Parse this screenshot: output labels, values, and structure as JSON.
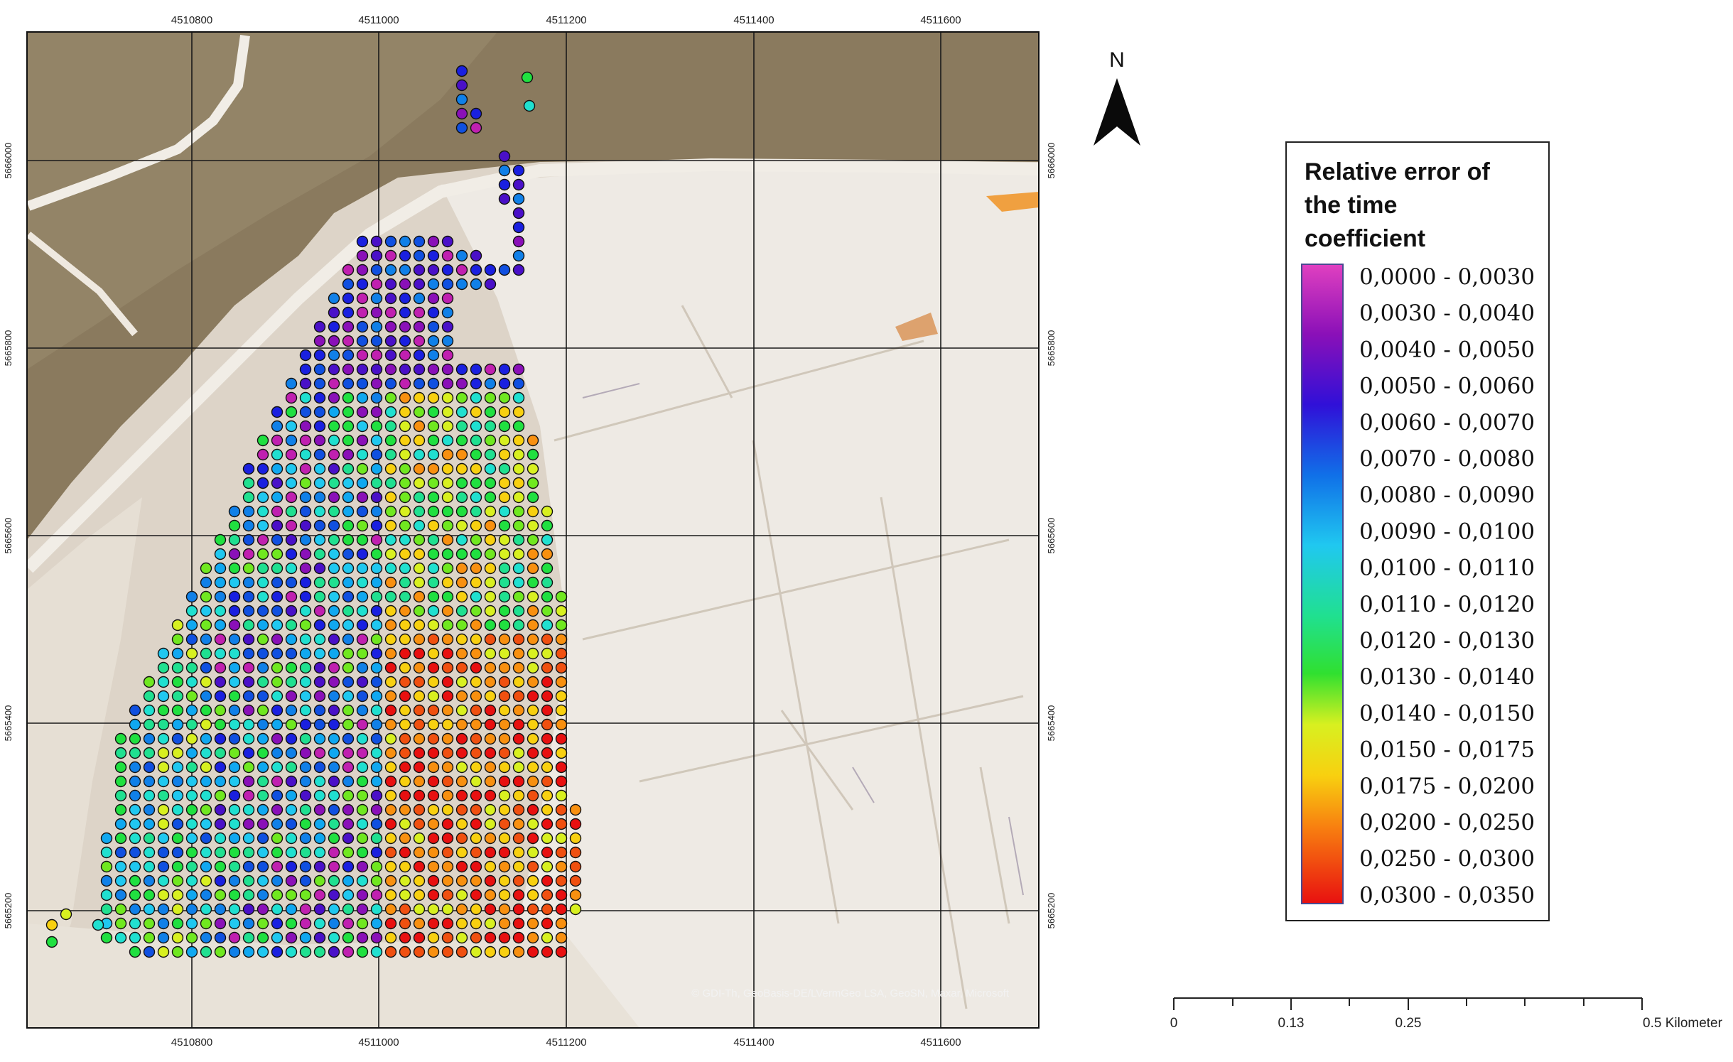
{
  "map": {
    "x_ticks": [
      "4510800",
      "4511000",
      "4511200",
      "4511400",
      "4511600"
    ],
    "y_ticks": [
      "5666000",
      "5665800",
      "5665600",
      "5665400",
      "5665200"
    ],
    "attribution": "© GDI-Th, GeoBasis-DE/LVermGeo LSA, GeoSN, Maxar, Microsoft",
    "imagery_colors": {
      "vegetation": "#8a7a5e",
      "bare_light": "#ddd4c8",
      "bare_white": "#eeeae4",
      "road": "#f1ede6"
    }
  },
  "north_arrow": {
    "label": "N"
  },
  "legend": {
    "title_lines": [
      "Relative error of",
      "the time",
      "coefficient"
    ],
    "classes": [
      {
        "label": "0,0000 - 0,0030",
        "color": "#e040c0"
      },
      {
        "label": "0,0030 - 0,0040",
        "color": "#c020b0"
      },
      {
        "label": "0,0040 - 0,0050",
        "color": "#8a10b8"
      },
      {
        "label": "0,0050 - 0,0060",
        "color": "#4a10c8"
      },
      {
        "label": "0,0060 - 0,0070",
        "color": "#1a20e0"
      },
      {
        "label": "0,0070 - 0,0080",
        "color": "#1050e0"
      },
      {
        "label": "0,0080 - 0,0090",
        "color": "#1080e8"
      },
      {
        "label": "0,0090 - 0,0100",
        "color": "#10a8f0"
      },
      {
        "label": "0,0100 - 0,0110",
        "color": "#20c8f0"
      },
      {
        "label": "0,0110 - 0,0120",
        "color": "#20e0d0"
      },
      {
        "label": "0,0120 - 0,0130",
        "color": "#20e090"
      },
      {
        "label": "0,0130 - 0,0140",
        "color": "#20e040"
      },
      {
        "label": "0,0140 - 0,0150",
        "color": "#70e820"
      },
      {
        "label": "0,0150 - 0,0175",
        "color": "#d8f020"
      },
      {
        "label": "0,0175 - 0,0200",
        "color": "#f8d010"
      },
      {
        "label": "0,0200 - 0,0250",
        "color": "#f89010"
      },
      {
        "label": "0,0250 - 0,0300",
        "color": "#f05010"
      },
      {
        "label": "0,0300 - 0,0350",
        "color": "#e81010"
      }
    ]
  },
  "scale_bar": {
    "labels": [
      "0",
      "0.13",
      "0.25",
      "0.5 Kilometer"
    ]
  }
}
